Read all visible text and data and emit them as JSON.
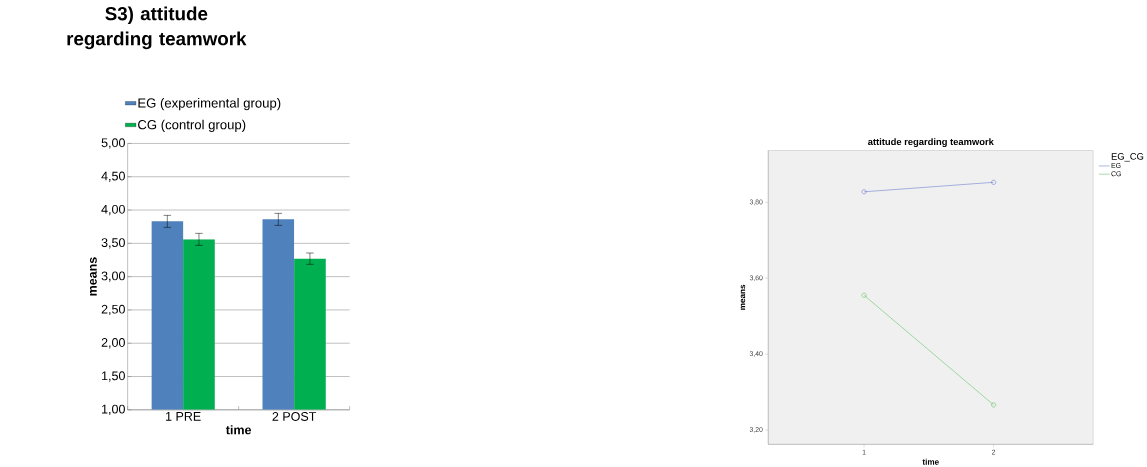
{
  "chart_data": [
    {
      "type": "bar",
      "title": "S3) attitude regarding teamwork",
      "xlabel": "time",
      "ylabel": "means",
      "categories": [
        "1 PRE",
        "2 POST"
      ],
      "series": [
        {
          "name": "EG (experimental group)",
          "color": "#4f81bd",
          "values": [
            3.83,
            3.86
          ],
          "errors": [
            0.09,
            0.09
          ]
        },
        {
          "name": "CG (control group)",
          "color": "#00b050",
          "values": [
            3.56,
            3.27
          ],
          "errors": [
            0.09,
            0.085
          ]
        }
      ],
      "ylim": [
        1,
        5
      ],
      "yticks": [
        {
          "value": 1,
          "label": "1,00"
        },
        {
          "value": 1.5,
          "label": "1,50"
        },
        {
          "value": 2,
          "label": "2,00"
        },
        {
          "value": 2.5,
          "label": "2,50"
        },
        {
          "value": 3,
          "label": "3,00"
        },
        {
          "value": 3.5,
          "label": "3,50"
        },
        {
          "value": 4,
          "label": "4,00"
        },
        {
          "value": 4.5,
          "label": "4,50"
        },
        {
          "value": 5,
          "label": "5,00"
        }
      ],
      "grid": "y",
      "legend": "top left"
    },
    {
      "type": "line",
      "title": "attitude regarding teamwork",
      "xlabel": "time",
      "ylabel": "means",
      "legend_title": "EG_CG",
      "x": [
        1,
        2
      ],
      "series": [
        {
          "name": "EG",
          "color": "#5b6dc4",
          "values": [
            3.828,
            3.853
          ]
        },
        {
          "name": "CG",
          "color": "#4cbb4c",
          "values": [
            3.555,
            3.266
          ]
        }
      ],
      "xlim": [
        0.26,
        2.77
      ],
      "xticks": [
        1,
        2
      ],
      "ylim": [
        3.162,
        3.937
      ],
      "yticks": [
        {
          "value": 3.2,
          "label": "3,20"
        },
        {
          "value": 3.4,
          "label": "3,40"
        },
        {
          "value": 3.6,
          "label": "3,60"
        },
        {
          "value": 3.8,
          "label": "3,80"
        }
      ],
      "marker": "circle",
      "grid": false,
      "legend": "right"
    }
  ]
}
